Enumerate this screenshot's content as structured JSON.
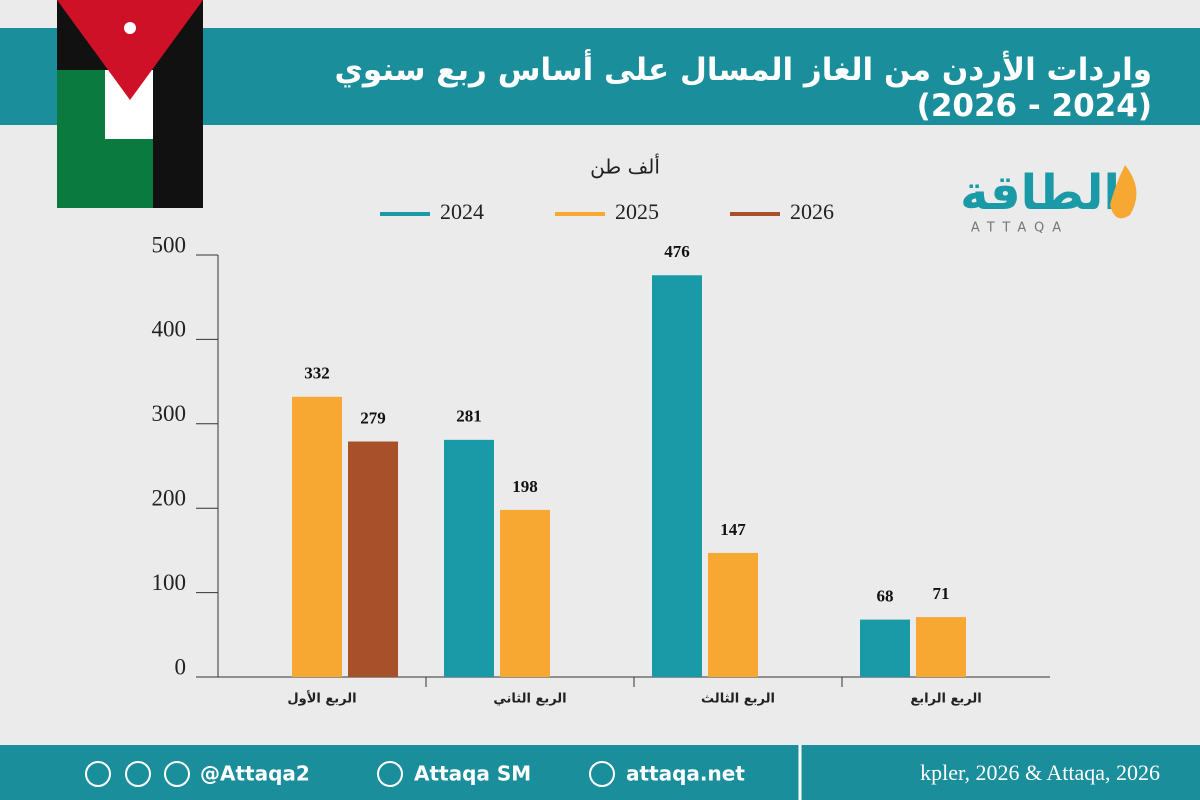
{
  "chart_data": {
    "type": "bar",
    "title": "واردات الأردن من الغاز المسال على أساس ربع سنوي (2024 - 2026)",
    "unit_label": "ألف طن",
    "categories": [
      "الربع الأول",
      "الربع الثاني",
      "الربع الثالث",
      "الربع الرابع"
    ],
    "series": [
      {
        "name": "2024",
        "color": "#1a9aa6",
        "values": [
          null,
          281,
          476,
          68
        ]
      },
      {
        "name": "2025",
        "color": "#f7a833",
        "values": [
          332,
          198,
          147,
          71
        ]
      },
      {
        "name": "2026",
        "color": "#a8502a",
        "values": [
          279,
          null,
          null,
          null
        ]
      }
    ],
    "ylim": [
      0,
      500
    ],
    "yticks": [
      0,
      100,
      200,
      300,
      400,
      500
    ],
    "grid": false
  },
  "logo": {
    "name": "الطاقة",
    "latin": "ATTAQA"
  },
  "footer": {
    "x": "@Attaqa2",
    "youtube": "Attaqa SM",
    "web": "attaqa.net",
    "source": "kpler, 2026 & Attaqa, 2026"
  }
}
